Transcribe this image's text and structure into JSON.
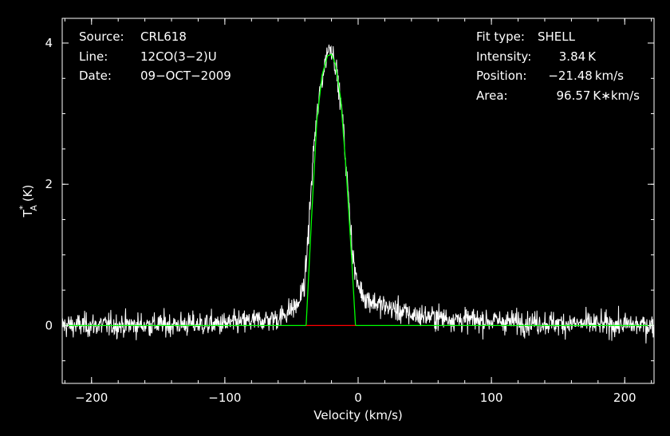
{
  "colors": {
    "background": "#000000",
    "axes": "#ffffff",
    "spectrum": "#ffffff",
    "fit": "#00ff00",
    "fit_window": "#ff0000"
  },
  "info_left": [
    {
      "label": "Source:",
      "value": "CRL618"
    },
    {
      "label": "Line:",
      "value": "12CO(3−2)U"
    },
    {
      "label": "Date:",
      "value": "09−OCT−2009"
    }
  ],
  "info_right": [
    {
      "label": "Fit type:",
      "value": "SHELL"
    },
    {
      "label": "Intensity:",
      "value": "3.84 K"
    },
    {
      "label": "Position:",
      "value": "−21.48 km/s"
    },
    {
      "label": "Area:",
      "value": "96.57 K∗km/s"
    }
  ],
  "chart_data": {
    "type": "line",
    "title": "",
    "xlabel": "Velocity (km/s)",
    "ylabel": "T*A (K)",
    "ylabel_main": "T",
    "ylabel_sup": "*",
    "ylabel_sub": "A",
    "ylabel_unit": "(K)",
    "xlim": [
      -222,
      222
    ],
    "ylim": [
      -0.82,
      4.35
    ],
    "xticks": [
      -200,
      -100,
      0,
      100,
      200
    ],
    "xtick_labels": [
      "−200",
      "−100",
      "0",
      "100",
      "200"
    ],
    "yticks": [
      0,
      2,
      4
    ],
    "ytick_labels": [
      "0",
      "2",
      "4"
    ],
    "grid": false,
    "series": [
      {
        "name": "spectrum",
        "style": "noisy",
        "noise_rms": 0.12,
        "baseline": [
          [
            -222,
            0.0
          ],
          [
            -100,
            0.02
          ],
          [
            -60,
            0.1
          ],
          [
            -45,
            0.3
          ],
          [
            -40,
            0.6
          ],
          [
            -37,
            1.4
          ],
          [
            -33,
            2.6
          ],
          [
            -28,
            3.4
          ],
          [
            -23,
            3.9
          ],
          [
            -20,
            3.95
          ],
          [
            -17,
            3.7
          ],
          [
            -12,
            3.0
          ],
          [
            -8,
            2.0
          ],
          [
            -4,
            1.0
          ],
          [
            -1,
            0.6
          ],
          [
            5,
            0.4
          ],
          [
            15,
            0.3
          ],
          [
            40,
            0.15
          ],
          [
            80,
            0.08
          ],
          [
            150,
            0.03
          ],
          [
            222,
            0.0
          ]
        ]
      },
      {
        "name": "fit",
        "points": [
          [
            -222,
            0
          ],
          [
            -39,
            0
          ],
          [
            -35,
            1.5
          ],
          [
            -31,
            2.9
          ],
          [
            -27,
            3.55
          ],
          [
            -23,
            3.82
          ],
          [
            -20,
            3.84
          ],
          [
            -17,
            3.7
          ],
          [
            -13,
            3.2
          ],
          [
            -9,
            2.2
          ],
          [
            -5,
            1.0
          ],
          [
            -2,
            0
          ],
          [
            222,
            0
          ]
        ]
      },
      {
        "name": "fit-window",
        "points": [
          [
            -39,
            0
          ],
          [
            -2,
            0
          ]
        ]
      }
    ]
  }
}
